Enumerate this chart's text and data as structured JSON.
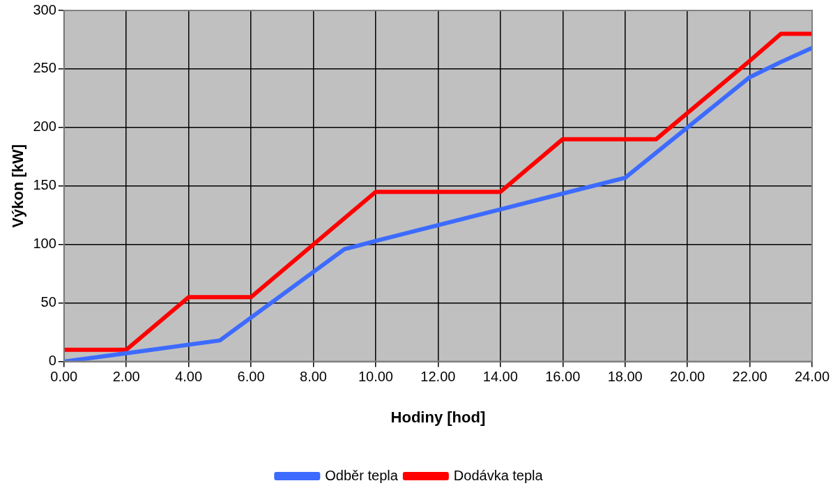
{
  "chart_data": {
    "type": "line",
    "xlabel": "Hodiny [hod]",
    "ylabel": "Výkon [kW]",
    "xlim": [
      0,
      24
    ],
    "xticks": [
      {
        "value": 0,
        "label": "0.00"
      },
      {
        "value": 2,
        "label": "2.00"
      },
      {
        "value": 4,
        "label": "4.00"
      },
      {
        "value": 6,
        "label": "6.00"
      },
      {
        "value": 8,
        "label": "8.00"
      },
      {
        "value": 10,
        "label": "10.00"
      },
      {
        "value": 12,
        "label": "12.00"
      },
      {
        "value": 14,
        "label": "14.00"
      },
      {
        "value": 16,
        "label": "16.00"
      },
      {
        "value": 18,
        "label": "18.00"
      },
      {
        "value": 20,
        "label": "20.00"
      },
      {
        "value": 22,
        "label": "22.00"
      },
      {
        "value": 24,
        "label": "24.00"
      }
    ],
    "ylim": [
      0,
      300
    ],
    "yticks": [
      0,
      50,
      100,
      150,
      200,
      250,
      300
    ],
    "grid": true,
    "legend": "bottom",
    "marker": "none",
    "line_style": "solid",
    "series": [
      {
        "name": "Odběr tepla",
        "color": "#3d6bff",
        "x": [
          0,
          2,
          5,
          9,
          10,
          14,
          18,
          20,
          22,
          23,
          24
        ],
        "values": [
          0,
          7,
          18,
          96,
          103,
          130,
          157,
          200,
          243,
          256,
          268
        ]
      },
      {
        "name": "Dodávka tepla",
        "color": "#ff0000",
        "x": [
          0,
          2,
          4,
          6,
          10,
          14,
          16,
          19,
          22,
          23,
          24
        ],
        "values": [
          10,
          10,
          55,
          55,
          145,
          145,
          190,
          190,
          257,
          280,
          280
        ]
      }
    ]
  }
}
